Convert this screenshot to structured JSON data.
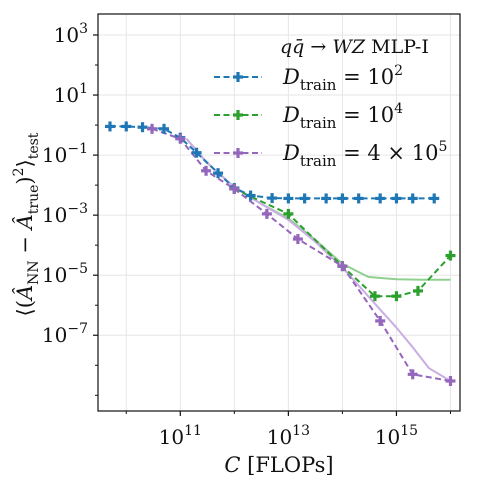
{
  "chart_data": {
    "type": "line",
    "title": "q̄q → WZ MLP-I",
    "title_parts": [
      "q",
      "q̄",
      " → ",
      "WZ",
      " MLP-I"
    ],
    "xlabel": "C [FLOPs]",
    "xlabel_parts": [
      "C",
      " [FLOPs]"
    ],
    "ylabel": "⟨(ÂNN − Âtrue)²⟩test",
    "ylabel_parts": [
      "⟨(",
      "Â",
      "NN",
      " − ",
      "Â",
      "true",
      ")",
      "2",
      "⟩",
      "test"
    ],
    "x_scale": "log",
    "y_scale": "log",
    "xlim": [
      3000000000.0,
      1.5e+16
    ],
    "ylim": [
      3e-10,
      5000.0
    ],
    "x_ticks": [
      {
        "value": 100000000000.0,
        "base": "10",
        "exp": "11"
      },
      {
        "value": 10000000000000.0,
        "base": "10",
        "exp": "13"
      },
      {
        "value": 1000000000000000.0,
        "base": "10",
        "exp": "15"
      }
    ],
    "y_ticks": [
      {
        "value": 1000.0,
        "base": "10",
        "exp": "3"
      },
      {
        "value": 10.0,
        "base": "10",
        "exp": "1"
      },
      {
        "value": 0.1,
        "base": "10",
        "exp": "−1"
      },
      {
        "value": 0.001,
        "base": "10",
        "exp": "−3"
      },
      {
        "value": 1e-05,
        "base": "10",
        "exp": "−5"
      },
      {
        "value": 1e-07,
        "base": "10",
        "exp": "−7"
      }
    ],
    "grid": true,
    "legend_position": "top-right",
    "series": [
      {
        "name": "Dtrain = 10^2",
        "legend_parts": [
          "D",
          "train",
          " = 10",
          "2"
        ],
        "color": "#1f77b4",
        "marker": "plus",
        "x": [
          5000000000.0,
          10000000000.0,
          20000000000.0,
          50000000000.0,
          100000000000.0,
          200000000000.0,
          500000000000.0,
          1000000000000.0,
          2000000000000.0,
          5000000000000.0,
          10000000000000.0,
          20000000000000.0,
          50000000000000.0,
          100000000000000.0,
          200000000000000.0,
          500000000000000.0,
          1000000000000000.0,
          2000000000000000.0,
          5000000000000000.0
        ],
        "y": [
          0.9,
          0.9,
          0.85,
          0.75,
          0.38,
          0.12,
          0.025,
          0.008,
          0.0045,
          0.0037,
          0.0036,
          0.0036,
          0.0036,
          0.0036,
          0.0036,
          0.0036,
          0.0036,
          0.0036,
          0.0036
        ]
      },
      {
        "name": "Dtrain = 10^4",
        "legend_parts": [
          "D",
          "train",
          " = 10",
          "4"
        ],
        "color": "#2ca02c",
        "marker": "plus",
        "x": [
          1000000000000.0,
          10000000000000.0,
          100000000000000.0,
          1000000000000000.0,
          1e+16
        ],
        "y": [
          0.0075,
          0.0011,
          2e-05,
          2e-06,
          4.5e-05
        ],
        "extra_points": {
          "x": [
            400000000000000.0,
            2500000000000000.0
          ],
          "y": [
            2e-06,
            3e-06
          ]
        },
        "fit": {
          "color": "#8fd08f",
          "x": [
            130000000000.0,
            300000000000.0,
            1000000000000.0,
            3000000000000.0,
            10000000000000.0,
            30000000000000.0,
            100000000000000.0,
            300000000000000.0,
            1000000000000000.0,
            3000000000000000.0,
            1e+16
          ],
          "y": [
            0.35,
            0.06,
            0.0085,
            0.0025,
            0.00078,
            0.00016,
            2.4e-05,
            8.8e-06,
            7.3e-06,
            7.1e-06,
            7e-06
          ]
        }
      },
      {
        "name": "Dtrain = 4 × 10^5",
        "legend_parts": [
          "D",
          "train",
          " = 4 × 10",
          "5"
        ],
        "color": "#9467bd",
        "marker": "plus",
        "x": [
          30000000000.0,
          100000000000.0,
          300000000000.0,
          1000000000000.0,
          4000000000000.0,
          15000000000000.0,
          100000000000000.0,
          500000000000000.0,
          2000000000000000.0,
          1e+16
        ],
        "y": [
          0.75,
          0.35,
          0.03,
          0.0075,
          0.0011,
          0.00016,
          2e-05,
          3e-07,
          5e-09,
          3e-09
        ],
        "fit": {
          "color": "#c9aee3",
          "x": [
            130000000000.0,
            300000000000.0,
            1000000000000.0,
            3000000000000.0,
            10000000000000.0,
            30000000000000.0,
            100000000000000.0,
            300000000000000.0,
            1000000000000000.0,
            2000000000000000.0,
            4000000000000000.0,
            1e+16
          ],
          "y": [
            0.35,
            0.06,
            0.0085,
            0.0025,
            0.0007,
            0.00014,
            1.8e-05,
            2e-06,
            1.8e-07,
            4e-08,
            8e-09,
            3e-09
          ]
        }
      }
    ]
  }
}
